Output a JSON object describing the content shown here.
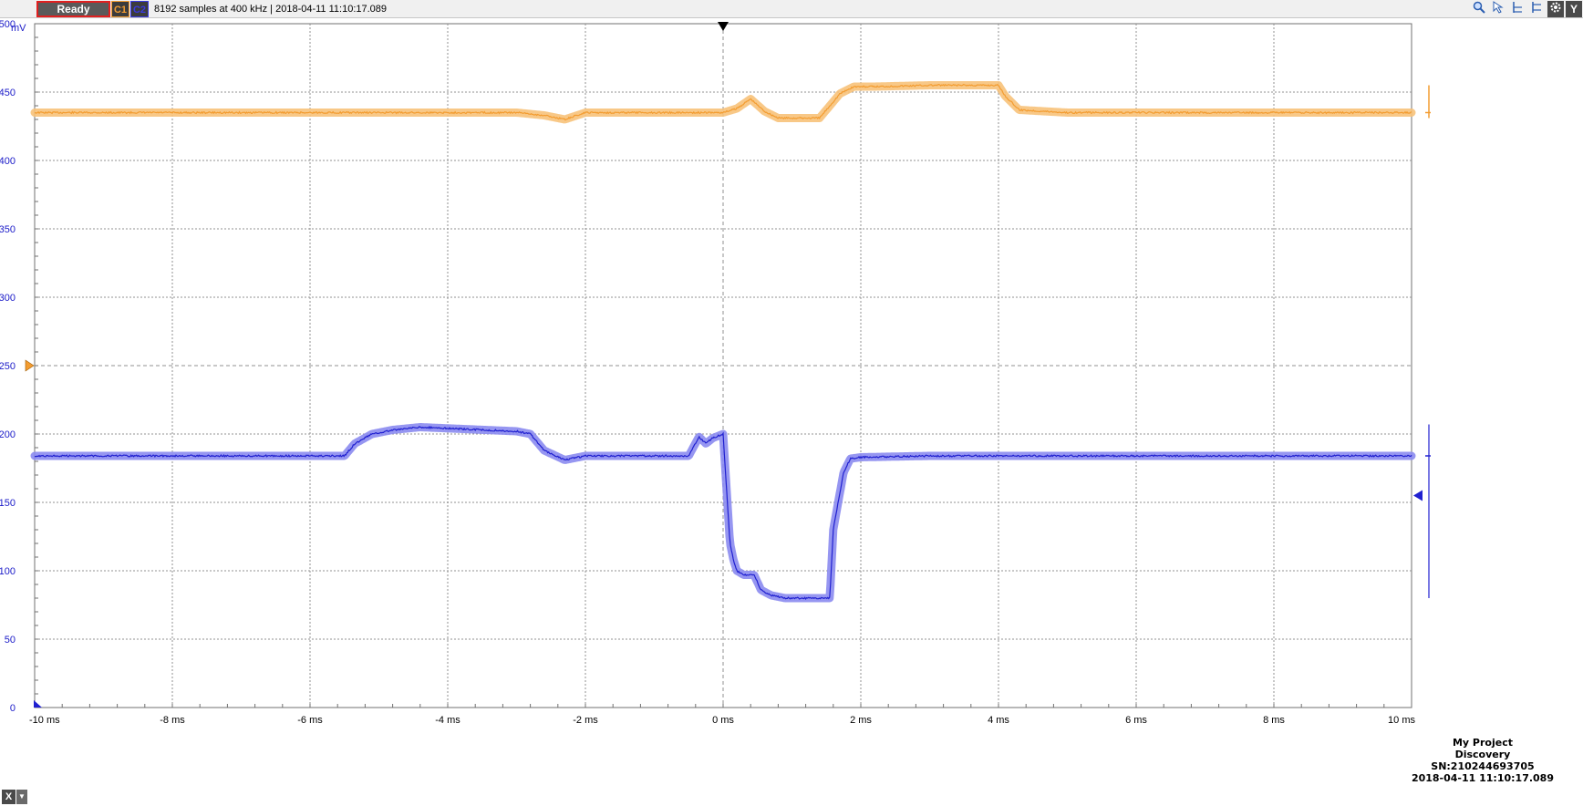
{
  "toolbar": {
    "status_label": "Ready",
    "channel1_label": "C1",
    "channel2_label": "C2",
    "info_text": "8192 samples at 400 kHz | 2018-04-11 11:10:17.089",
    "tools": [
      "zoom-icon",
      "cursor-icon",
      "x-cursor-icon",
      "y-cursor-icon",
      "settings-icon"
    ],
    "y_button_label": "Y"
  },
  "colors": {
    "channel1": "#f39c30",
    "channel1_band": "#f7c27a",
    "channel2": "#2020d0",
    "channel2_band": "#8b8bf0",
    "grid": "#909090",
    "axis_text_y": "#1a1ac8"
  },
  "chart_data": {
    "type": "line",
    "ylabel": "mV",
    "ylim": [
      0,
      500
    ],
    "xlim": [
      -10,
      10
    ],
    "x_unit": "ms",
    "yticks": [
      0,
      50,
      100,
      150,
      200,
      250,
      300,
      350,
      400,
      450,
      500
    ],
    "xticks": [
      -10,
      -8,
      -6,
      -4,
      -2,
      0,
      2,
      4,
      6,
      8,
      10
    ],
    "xtick_labels": [
      "-10 ms",
      "-8 ms",
      "-6 ms",
      "-4 ms",
      "-2 ms",
      "0 ms",
      "2 ms",
      "4 ms",
      "6 ms",
      "8 ms",
      "10 ms"
    ],
    "grid": true,
    "trigger_time": 0,
    "trigger_level": 250,
    "c2_offset_marker": 155,
    "series": [
      {
        "name": "C1",
        "color": "#f39c30",
        "x": [
          -10,
          -4,
          -3.0,
          -2.6,
          -2.3,
          -2.0,
          -1.0,
          0.0,
          0.2,
          0.4,
          0.6,
          0.8,
          1.0,
          1.4,
          1.55,
          1.7,
          1.9,
          2.2,
          3.0,
          4.0,
          4.1,
          4.3,
          5,
          10
        ],
        "y": [
          435,
          435,
          435,
          433,
          430,
          435,
          435,
          435,
          438,
          445,
          436,
          431,
          431,
          431,
          440,
          449,
          454,
          454,
          455,
          455,
          447,
          437,
          435,
          435
        ]
      },
      {
        "name": "C2",
        "color": "#2020d0",
        "x": [
          -10,
          -5.5,
          -5.35,
          -5.1,
          -4.8,
          -4.4,
          -3.0,
          -2.8,
          -2.6,
          -2.3,
          -2.0,
          -0.5,
          -0.35,
          -0.25,
          -0.15,
          0.0,
          0.05,
          0.1,
          0.15,
          0.2,
          0.3,
          0.45,
          0.55,
          0.7,
          0.9,
          1.1,
          1.55,
          1.6,
          1.75,
          1.85,
          2.0,
          3.0,
          10
        ],
        "y": [
          184,
          184,
          193,
          200,
          203,
          205,
          202,
          200,
          188,
          181,
          184,
          184,
          198,
          193,
          197,
          200,
          160,
          120,
          108,
          100,
          97,
          97,
          86,
          82,
          80,
          80,
          80,
          130,
          172,
          182,
          183,
          184,
          184
        ]
      }
    ]
  },
  "annotation": {
    "project": "My Project",
    "device": "Discovery",
    "serial": "SN:210244693705",
    "timestamp": "2018-04-11 11:10:17.089"
  },
  "x_button_label": "X",
  "x_dropdown_icon": "chevron-down-icon"
}
